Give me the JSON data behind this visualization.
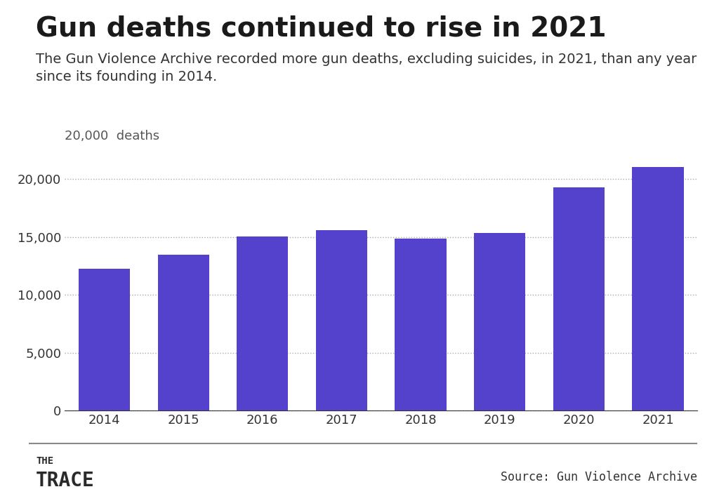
{
  "title": "Gun deaths continued to rise in 2021",
  "subtitle": "The Gun Violence Archive recorded more gun deaths, excluding suicides, in 2021, than any year\nsince its founding in 2014.",
  "years": [
    "2014",
    "2015",
    "2016",
    "2017",
    "2018",
    "2019",
    "2020",
    "2021"
  ],
  "values": [
    12271,
    13480,
    15083,
    15588,
    14904,
    15390,
    19327,
    21028
  ],
  "bar_color": "#5542CC",
  "background_color": "#ffffff",
  "ylabel_text": "20,000  deaths",
  "yticks": [
    0,
    5000,
    10000,
    15000,
    20000
  ],
  "ytick_labels": [
    "0",
    "5,000",
    "10,000",
    "15,000",
    "20,000"
  ],
  "ylim": [
    0,
    22500
  ],
  "source_text": "Source: Gun Violence Archive",
  "logo_line1": "THE",
  "logo_line2": "TRACE",
  "title_fontsize": 28,
  "subtitle_fontsize": 14,
  "axis_fontsize": 13,
  "footer_fontsize": 12
}
